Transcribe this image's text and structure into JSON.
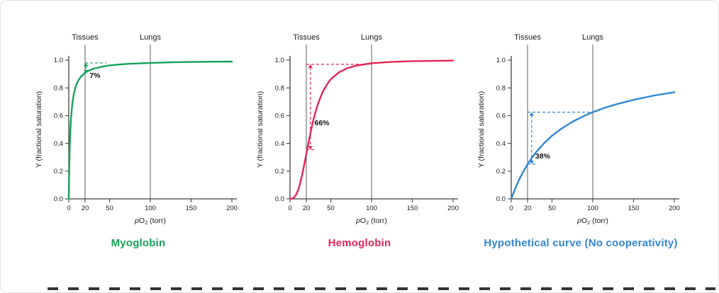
{
  "figure": {
    "background": "#ffffff",
    "border_color": "#e3e3e3"
  },
  "chart_data": [
    {
      "type": "line",
      "title": "Myoglobin",
      "color": "#16a258",
      "xlabel": "pO2 (torr)",
      "ylabel": "Y (fractional saturation)",
      "xlim": [
        0,
        200
      ],
      "ylim": [
        0,
        1.0
      ],
      "xticks": [
        0,
        20,
        50,
        100,
        150,
        200
      ],
      "yticks": [
        0,
        0.2,
        0.4,
        0.6,
        0.8,
        1.0
      ],
      "grid": false,
      "ref_lines": [
        {
          "label": "Tissues",
          "x": 20
        },
        {
          "label": "Lungs",
          "x": 100
        }
      ],
      "points": [
        [
          0,
          0
        ],
        [
          0.5,
          0.2
        ],
        [
          1,
          0.333
        ],
        [
          1.5,
          0.429
        ],
        [
          2,
          0.5
        ],
        [
          2.5,
          0.556
        ],
        [
          3,
          0.6
        ],
        [
          4,
          0.667
        ],
        [
          5,
          0.714
        ],
        [
          6,
          0.75
        ],
        [
          8,
          0.8
        ],
        [
          10,
          0.833
        ],
        [
          12,
          0.857
        ],
        [
          15,
          0.882
        ],
        [
          20,
          0.909
        ],
        [
          25,
          0.926
        ],
        [
          30,
          0.938
        ],
        [
          40,
          0.952
        ],
        [
          50,
          0.962
        ],
        [
          60,
          0.968
        ],
        [
          75,
          0.974
        ],
        [
          100,
          0.98
        ],
        [
          125,
          0.984
        ],
        [
          150,
          0.987
        ],
        [
          175,
          0.989
        ],
        [
          200,
          0.99
        ]
      ],
      "annotation": {
        "label": "7%",
        "tissues_x": 20,
        "arrow_x": 21,
        "y_tissues": 0.905,
        "y_lungs": 0.98,
        "h_extent": 46,
        "label_x": 25.5,
        "label_y": 0.872
      }
    },
    {
      "type": "line",
      "title": "Hemoglobin",
      "color": "#e22658",
      "xlabel": "pO2 (torr)",
      "ylabel": "Y (fractional saturation)",
      "xlim": [
        0,
        200
      ],
      "ylim": [
        0,
        1.0
      ],
      "xticks": [
        0,
        20,
        50,
        100,
        150,
        200
      ],
      "yticks": [
        0,
        0.2,
        0.4,
        0.6,
        0.8,
        1.0
      ],
      "grid": false,
      "ref_lines": [
        {
          "label": "Tissues",
          "x": 20
        },
        {
          "label": "Lungs",
          "x": 100
        }
      ],
      "points": [
        [
          0,
          0
        ],
        [
          2,
          0.001
        ],
        [
          5,
          0.01
        ],
        [
          8,
          0.036
        ],
        [
          10,
          0.064
        ],
        [
          12,
          0.103
        ],
        [
          15,
          0.177
        ],
        [
          18,
          0.263
        ],
        [
          20,
          0.324
        ],
        [
          22,
          0.385
        ],
        [
          25,
          0.473
        ],
        [
          28,
          0.552
        ],
        [
          30,
          0.599
        ],
        [
          32,
          0.642
        ],
        [
          35,
          0.697
        ],
        [
          40,
          0.77
        ],
        [
          45,
          0.823
        ],
        [
          50,
          0.862
        ],
        [
          60,
          0.912
        ],
        [
          70,
          0.941
        ],
        [
          80,
          0.959
        ],
        [
          100,
          0.978
        ],
        [
          125,
          0.988
        ],
        [
          150,
          0.993
        ],
        [
          175,
          0.995
        ],
        [
          200,
          0.997
        ]
      ],
      "annotation": {
        "label": "66%",
        "tissues_x": 20,
        "arrow_x": 25,
        "y_tissues": 0.355,
        "y_lungs": 0.97,
        "h_extent": 100,
        "h_bottom_extent": 31,
        "label_x": 30,
        "label_y": 0.53
      }
    },
    {
      "type": "line",
      "title": "Hypothetical curve (No cooperativity)",
      "color": "#3187d4",
      "xlabel": "pO2 (torr)",
      "ylabel": "Y (fractional saturation)",
      "xlim": [
        0,
        200
      ],
      "ylim": [
        0,
        1.0
      ],
      "xticks": [
        0,
        20,
        50,
        100,
        150,
        200
      ],
      "yticks": [
        0,
        0.2,
        0.4,
        0.6,
        0.8,
        1.0
      ],
      "grid": false,
      "ref_lines": [
        {
          "label": "Tissues",
          "x": 20
        },
        {
          "label": "Lungs",
          "x": 100
        }
      ],
      "points": [
        [
          0,
          0
        ],
        [
          5,
          0.077
        ],
        [
          10,
          0.143
        ],
        [
          15,
          0.2
        ],
        [
          20,
          0.25
        ],
        [
          25,
          0.294
        ],
        [
          30,
          0.333
        ],
        [
          40,
          0.4
        ],
        [
          50,
          0.455
        ],
        [
          60,
          0.5
        ],
        [
          75,
          0.556
        ],
        [
          90,
          0.6
        ],
        [
          100,
          0.625
        ],
        [
          115,
          0.657
        ],
        [
          130,
          0.684
        ],
        [
          150,
          0.714
        ],
        [
          175,
          0.745
        ],
        [
          200,
          0.769
        ]
      ],
      "annotation": {
        "label": "38%",
        "tissues_x": 20,
        "arrow_x": 25,
        "y_tissues": 0.25,
        "y_lungs": 0.625,
        "h_extent": 100,
        "h_bottom_extent": 31,
        "label_x": 29.5,
        "label_y": 0.29
      }
    }
  ]
}
